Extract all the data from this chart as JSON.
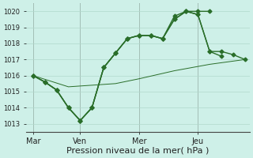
{
  "bg_color": "#cef0e8",
  "grid_color": "#b0d8cc",
  "line_color": "#2a6e2a",
  "xlabel": "Pression niveau de la mer( hPa )",
  "xlabel_fontsize": 8,
  "ylim": [
    1012.5,
    1020.5
  ],
  "yticks": [
    1013,
    1014,
    1015,
    1016,
    1017,
    1018,
    1019,
    1020
  ],
  "xtick_labels": [
    "Mar",
    "Ven",
    "Mer",
    "Jeu"
  ],
  "xtick_positions": [
    0,
    2,
    4.5,
    7
  ],
  "vline_positions": [
    0,
    2,
    4.5,
    7
  ],
  "xlim": [
    -0.3,
    9.2
  ],
  "series1_x": [
    0,
    0.5,
    1.0,
    1.5,
    2.0,
    2.5,
    3.0,
    3.5,
    4.0,
    4.5,
    5.0,
    5.5,
    6.0,
    6.5,
    7.0,
    7.5
  ],
  "series1_y": [
    1016.0,
    1015.6,
    1015.1,
    1014.0,
    1013.2,
    1014.0,
    1016.5,
    1017.4,
    1018.3,
    1018.5,
    1018.5,
    1018.3,
    1019.5,
    1020.0,
    1020.0,
    1020.0
  ],
  "series2_x": [
    0,
    0.5,
    1.0,
    1.5,
    2.0,
    2.5,
    3.0,
    3.5,
    4.0,
    4.5,
    5.0,
    5.5,
    6.0,
    6.5,
    7.0,
    7.5,
    8.0
  ],
  "series2_y": [
    1016.0,
    1015.6,
    1015.1,
    1014.0,
    1013.2,
    1014.0,
    1016.5,
    1017.4,
    1018.3,
    1018.5,
    1018.5,
    1018.3,
    1019.7,
    1020.0,
    1019.8,
    1017.5,
    1017.2
  ],
  "series3_x": [
    0,
    0.5,
    1.0,
    1.5,
    2.0,
    2.5,
    3.0,
    3.5,
    4.0,
    4.5,
    5.0,
    5.5,
    6.0,
    6.5,
    7.0,
    7.5,
    8.0,
    8.5,
    9.0
  ],
  "series3_y": [
    1016.0,
    1015.6,
    1015.1,
    1014.0,
    1013.2,
    1014.0,
    1016.5,
    1017.4,
    1018.3,
    1018.5,
    1018.5,
    1018.3,
    1019.5,
    1020.0,
    1019.8,
    1017.5,
    1017.5,
    1017.3,
    1017.0
  ],
  "trend_x": [
    0,
    1.5,
    3.5,
    4.5,
    6.0,
    7.5,
    9.0
  ],
  "trend_y": [
    1016.0,
    1015.3,
    1015.5,
    1015.8,
    1016.3,
    1016.7,
    1017.0
  ]
}
